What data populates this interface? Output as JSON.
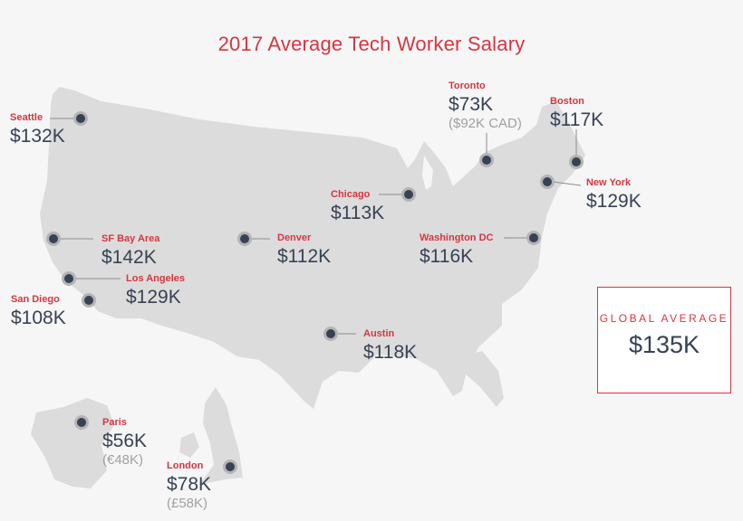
{
  "title": "2017 Average Tech Worker Salary",
  "colors": {
    "accent": "#d9353f",
    "value": "#384255",
    "muted": "#a0a0a0",
    "land": "#dcdcdc",
    "background": "#f6f6f6"
  },
  "cities": {
    "seattle": {
      "name": "Seattle",
      "salary": "$132K"
    },
    "sf": {
      "name": "SF Bay Area",
      "salary": "$142K"
    },
    "la": {
      "name": "Los Angeles",
      "salary": "$129K"
    },
    "sd": {
      "name": "San Diego",
      "salary": "$108K"
    },
    "denver": {
      "name": "Denver",
      "salary": "$112K"
    },
    "chicago": {
      "name": "Chicago",
      "salary": "$113K"
    },
    "austin": {
      "name": "Austin",
      "salary": "$118K"
    },
    "toronto": {
      "name": "Toronto",
      "salary": "$73K",
      "local": "($92K CAD)"
    },
    "boston": {
      "name": "Boston",
      "salary": "$117K"
    },
    "newyork": {
      "name": "New York",
      "salary": "$129K"
    },
    "dc": {
      "name": "Washington DC",
      "salary": "$116K"
    },
    "paris": {
      "name": "Paris",
      "salary": "$56K",
      "local": "(€48K)"
    },
    "london": {
      "name": "London",
      "salary": "$78K",
      "local": "(£58K)"
    }
  },
  "global": {
    "label": "GLOBAL AVERAGE",
    "value": "$135K"
  }
}
